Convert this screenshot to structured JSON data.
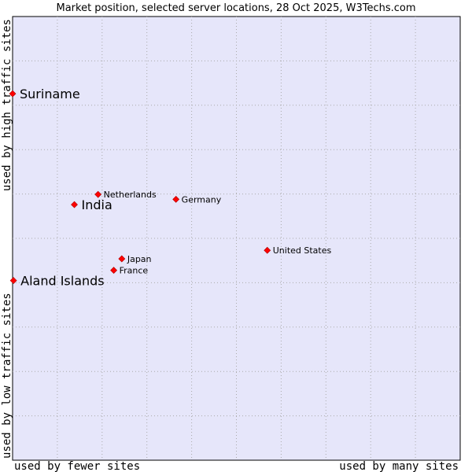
{
  "chart_data": {
    "type": "scatter",
    "title": "Market position, selected server locations, 28 Oct 2025, W3Techs.com",
    "xlabel_left": "used by fewer sites",
    "xlabel_right": "used by many sites",
    "ylabel_bottom": "used by low traffic sites",
    "ylabel_top": "used by high traffic sites",
    "xlim": [
      0,
      100
    ],
    "ylim": [
      0,
      100
    ],
    "grid": true,
    "background": "#e6e6fa",
    "grid_color": "#aaaaaa",
    "point_color": "#ff0000",
    "points": [
      {
        "name": "Suriname",
        "x": 0.0,
        "y": 82.6,
        "highlight": true
      },
      {
        "name": "India",
        "x": 13.8,
        "y": 57.6,
        "highlight": true
      },
      {
        "name": "Aland Islands",
        "x": 0.2,
        "y": 40.5,
        "highlight": true
      },
      {
        "name": "Netherlands",
        "x": 19.1,
        "y": 59.9,
        "highlight": false
      },
      {
        "name": "Germany",
        "x": 36.5,
        "y": 58.8,
        "highlight": false
      },
      {
        "name": "United States",
        "x": 56.9,
        "y": 47.3,
        "highlight": false
      },
      {
        "name": "Japan",
        "x": 24.4,
        "y": 45.4,
        "highlight": false
      },
      {
        "name": "France",
        "x": 22.6,
        "y": 42.8,
        "highlight": false
      }
    ]
  }
}
